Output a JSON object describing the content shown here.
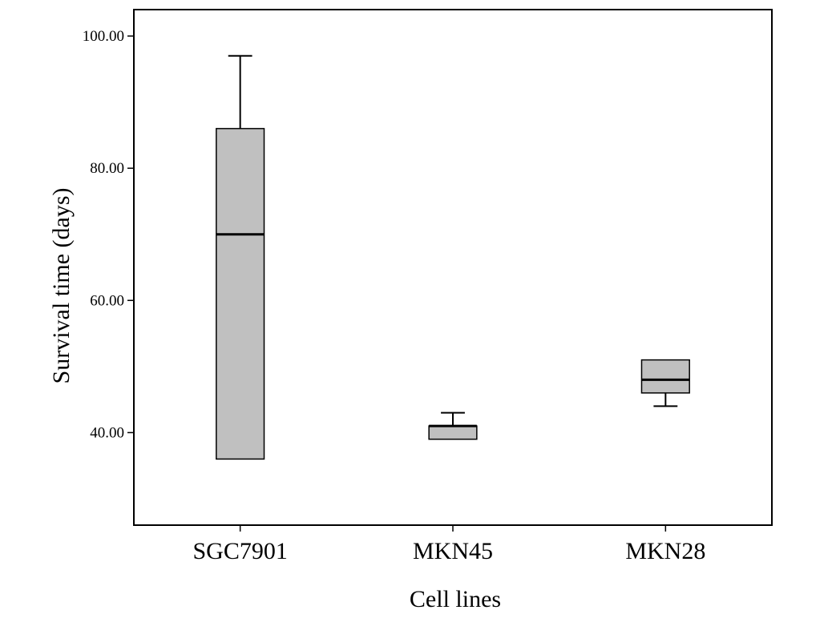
{
  "chart_data": {
    "type": "boxplot",
    "title": "",
    "xlabel": "Cell lines",
    "ylabel": "Survival time (days)",
    "ylim": [
      26,
      104
    ],
    "yticks": [
      40,
      60,
      80,
      100
    ],
    "ytick_labels": [
      "40.00",
      "60.00",
      "80.00",
      "100.00"
    ],
    "categories": [
      "SGC7901",
      "MKN45",
      "MKN28"
    ],
    "boxes": [
      {
        "category": "SGC7901",
        "whisker_low": 36,
        "q1": 36,
        "median": 70,
        "q3": 86,
        "whisker_high": 97
      },
      {
        "category": "MKN45",
        "whisker_low": 39,
        "q1": 39,
        "median": 41,
        "q3": 41,
        "whisker_high": 43
      },
      {
        "category": "MKN28",
        "whisker_low": 44,
        "q1": 46,
        "median": 48,
        "q3": 51,
        "whisker_high": 51
      }
    ],
    "grid": false,
    "legend": "none",
    "colors": {
      "box_fill": "#c0c0c0",
      "stroke": "#000000",
      "background": "#ffffff"
    }
  }
}
